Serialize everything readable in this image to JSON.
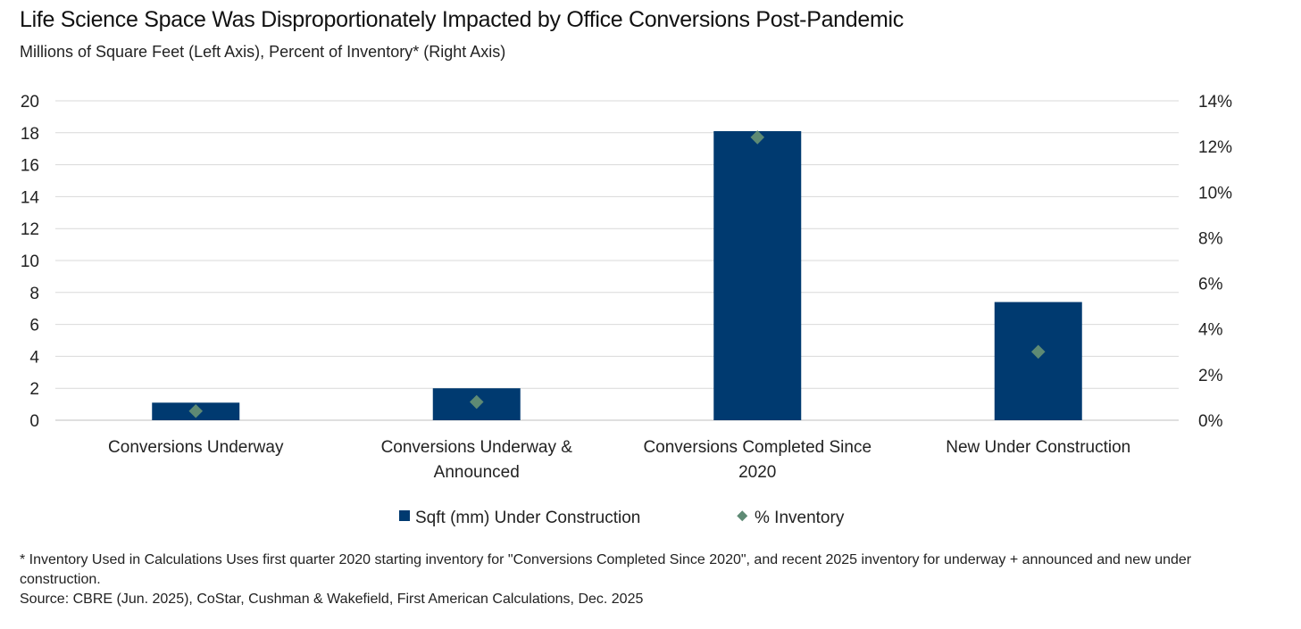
{
  "title": "Life Science Space Was Disproportionately Impacted by Office Conversions Post-Pandemic",
  "subtitle": "Millions  of Square Feet (Left Axis),  Percent of Inventory* (Right Axis)",
  "footnote": {
    "note": "* Inventory Used in Calculations Uses first quarter 2020 starting inventory for \"Conversions Completed Since 2020\", and recent 2025 inventory for underway + announced and new under construction.",
    "source": "Source: CBRE (Jun. 2025), CoStar, Cushman & Wakefield,  First American Calculations, Dec. 2025"
  },
  "colors": {
    "bar": "#003a70",
    "marker": "#5e8a74",
    "grid": "#d9d9d9"
  },
  "chart_data": {
    "type": "bar",
    "categories": [
      [
        "Conversions Underway"
      ],
      [
        "Conversions Underway &",
        "Announced"
      ],
      [
        "Conversions Completed Since",
        "2020"
      ],
      [
        "New Under Construction"
      ]
    ],
    "series": [
      {
        "name": "Sqft (mm) Under Construction",
        "type": "bar",
        "axis": "left",
        "values": [
          1.1,
          2.0,
          18.1,
          7.4
        ]
      },
      {
        "name": "% Inventory",
        "type": "scatter",
        "axis": "right",
        "values": [
          0.4,
          0.8,
          12.4,
          3.0
        ]
      }
    ],
    "left_axis": {
      "ylim": [
        0,
        20
      ],
      "ticks": [
        0,
        2,
        4,
        6,
        8,
        10,
        12,
        14,
        16,
        18,
        20
      ]
    },
    "right_axis": {
      "ylim": [
        0,
        14
      ],
      "ticks": [
        "0%",
        "2%",
        "4%",
        "6%",
        "8%",
        "10%",
        "12%",
        "14%"
      ]
    },
    "grid": true,
    "legend_position": "bottom"
  }
}
